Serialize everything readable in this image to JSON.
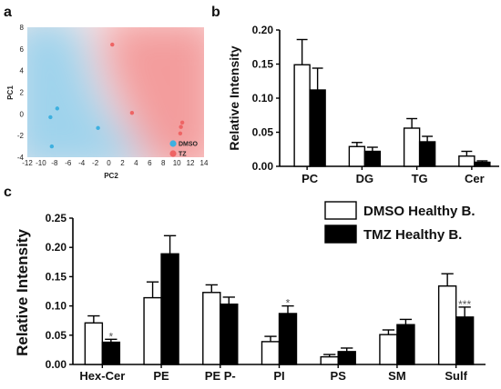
{
  "panels": {
    "a": "a",
    "b": "b",
    "c": "c"
  },
  "colors": {
    "dmso": "#ffffff",
    "tmz": "#000000",
    "scatter_dmso": "#3db0e0",
    "scatter_tz": "#ee6464",
    "bg_blue": "#a8d8ee",
    "bg_red": "#f4a0a0"
  },
  "chart_data": [
    {
      "id": "a",
      "type": "scatter",
      "title": "",
      "xlabel": "PC2",
      "ylabel": "PC1",
      "xlim": [
        -12,
        14
      ],
      "ylim": [
        -4,
        8
      ],
      "xticks": [
        -12,
        -10,
        -8,
        -6,
        -4,
        -2,
        0,
        2,
        4,
        6,
        8,
        10,
        12,
        14
      ],
      "yticks": [
        -4,
        -2,
        0,
        2,
        4,
        6,
        8
      ],
      "legend_position": "bottom-right",
      "series": [
        {
          "name": "DMSO",
          "color": "#3db0e0",
          "points": [
            [
              -8.6,
              -0.3
            ],
            [
              -7.6,
              0.5
            ],
            [
              -8.4,
              -3.0
            ],
            [
              -1.6,
              -1.3
            ]
          ]
        },
        {
          "name": "TZ",
          "color": "#ee6464",
          "points": [
            [
              0.5,
              6.4
            ],
            [
              3.4,
              0.1
            ],
            [
              10.6,
              -1.2
            ],
            [
              10.8,
              -0.8
            ],
            [
              10.5,
              -1.8
            ]
          ]
        }
      ]
    },
    {
      "id": "b",
      "type": "bar",
      "title": "",
      "xlabel": "",
      "ylabel": "Relative Intensity",
      "ylim": [
        0,
        0.2
      ],
      "yticks": [
        "0.00",
        "0.05",
        "0.10",
        "0.15",
        "0.20"
      ],
      "categories": [
        "PC",
        "DG",
        "TG",
        "Cer"
      ],
      "series": [
        {
          "name": "DMSO Healthy B.",
          "values": [
            0.149,
            0.029,
            0.056,
            0.015
          ],
          "errors": [
            0.037,
            0.006,
            0.014,
            0.007
          ]
        },
        {
          "name": "TMZ Healthy B.",
          "values": [
            0.112,
            0.022,
            0.036,
            0.006
          ],
          "errors": [
            0.032,
            0.006,
            0.008,
            0.002
          ]
        }
      ]
    },
    {
      "id": "c",
      "type": "bar",
      "title": "",
      "xlabel": "",
      "ylabel": "Relative Intensity",
      "ylim": [
        0,
        0.25
      ],
      "yticks": [
        "0.00",
        "0.05",
        "0.10",
        "0.15",
        "0.20",
        "0.25"
      ],
      "categories": [
        "Hex-Cer",
        "PE",
        "PE P-",
        "PI",
        "PS",
        "SM",
        "Sulf"
      ],
      "legend_position": "top-right",
      "series": [
        {
          "name": "DMSO Healthy B.",
          "values": [
            0.071,
            0.114,
            0.123,
            0.039,
            0.013,
            0.051,
            0.134
          ],
          "errors": [
            0.012,
            0.027,
            0.013,
            0.009,
            0.004,
            0.008,
            0.021
          ]
        },
        {
          "name": "TMZ Healthy B.",
          "values": [
            0.038,
            0.189,
            0.103,
            0.087,
            0.022,
            0.068,
            0.081
          ],
          "errors": [
            0.005,
            0.031,
            0.012,
            0.013,
            0.006,
            0.009,
            0.017
          ]
        }
      ],
      "annotations": [
        {
          "category": "Hex-Cer",
          "series": 1,
          "text": "*"
        },
        {
          "category": "PI",
          "series": 1,
          "text": "*"
        },
        {
          "category": "Sulf",
          "series": 1,
          "text": "***"
        }
      ]
    }
  ]
}
